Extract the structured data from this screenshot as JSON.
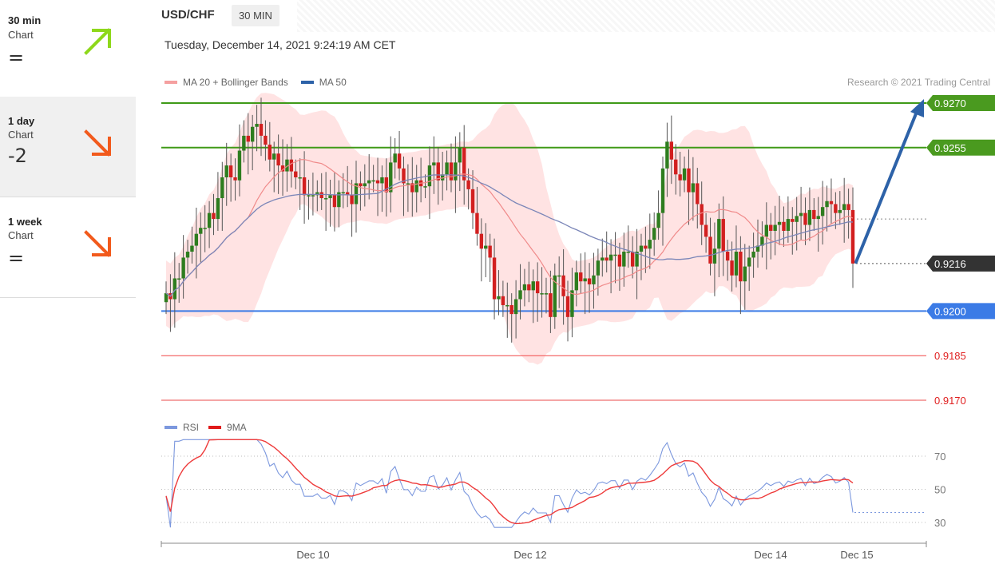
{
  "sidebar": {
    "items": [
      {
        "title": "30 min",
        "sub": "Chart",
        "score": "=",
        "trend": "up",
        "color": "#8ed81b"
      },
      {
        "title": "1 day",
        "sub": "Chart",
        "score": "-2",
        "trend": "down",
        "color": "#f25a1c"
      },
      {
        "title": "1 week",
        "sub": "Chart",
        "score": "=",
        "trend": "down",
        "color": "#f25a1c"
      }
    ]
  },
  "header": {
    "pair": "USD/CHF",
    "timeframe": "30 MIN",
    "datetime": "Tuesday, December 14, 2021 9:24:19 AM CET"
  },
  "legend": {
    "ma20": "MA 20 + Bollinger Bands",
    "ma50": "MA 50",
    "rsi": "RSI",
    "ma9": "9MA"
  },
  "credit": "Research © 2021 Trading Central",
  "colors": {
    "bull": "#2e7d1f",
    "bear": "#d21f1f",
    "resistance": "#3f9a17",
    "support": "#3b7be6",
    "target_arrow": "#2d62a8",
    "bollinger": "#ffe3e3",
    "ma20": "#f08a8a",
    "ma50": "#7b86b8",
    "rsi": "#7c98de",
    "ma9": "#ee3b3b"
  },
  "chart_data": {
    "type": "candlestick",
    "instrument": "USD/CHF",
    "interval": "30 MIN",
    "levels": [
      {
        "label": "0.9270",
        "value": 0.927,
        "kind": "resistance"
      },
      {
        "label": "0.9255",
        "value": 0.9255,
        "kind": "resistance"
      },
      {
        "label": "0.9216",
        "value": 0.9216,
        "kind": "last"
      },
      {
        "label": "0.9200",
        "value": 0.92,
        "kind": "support"
      },
      {
        "label": "0.9185",
        "value": 0.9185,
        "kind": "support2"
      },
      {
        "label": "0.9170",
        "value": 0.917,
        "kind": "support3"
      }
    ],
    "ylim": [
      0.9165,
      0.9288
    ],
    "x_ticks": [
      "Dec 10",
      "Dec 12",
      "Dec 14",
      "Dec 15"
    ],
    "candle_count": 160,
    "close_series": [
      0.9206,
      0.9204,
      0.9211,
      0.9211,
      0.9218,
      0.922,
      0.9222,
      0.9226,
      0.9228,
      0.9228,
      0.9233,
      0.9231,
      0.9238,
      0.9245,
      0.9249,
      0.9245,
      0.9244,
      0.9254,
      0.9259,
      0.9257,
      0.9262,
      0.9263,
      0.9259,
      0.9256,
      0.9251,
      0.9253,
      0.9249,
      0.9247,
      0.9251,
      0.9247,
      0.9245,
      0.9245,
      0.9239,
      0.9239,
      0.9239,
      0.924,
      0.9238,
      0.9238,
      0.9239,
      0.9235,
      0.924,
      0.924,
      0.9239,
      0.9236,
      0.9243,
      0.9242,
      0.9243,
      0.9244,
      0.9244,
      0.9243,
      0.9245,
      0.924,
      0.925,
      0.9253,
      0.9248,
      0.9243,
      0.9243,
      0.924,
      0.9244,
      0.9242,
      0.9242,
      0.9249,
      0.925,
      0.9244,
      0.9246,
      0.925,
      0.9244,
      0.925,
      0.9255,
      0.9244,
      0.9241,
      0.9233,
      0.9226,
      0.9221,
      0.9222,
      0.9218,
      0.9204,
      0.9205,
      0.9202,
      0.9202,
      0.9199,
      0.9204,
      0.9207,
      0.9209,
      0.9207,
      0.921,
      0.9206,
      0.9206,
      0.9206,
      0.9198,
      0.9212,
      0.9212,
      0.9205,
      0.9198,
      0.9207,
      0.9213,
      0.921,
      0.9211,
      0.9209,
      0.9212,
      0.9217,
      0.9218,
      0.9217,
      0.9219,
      0.9219,
      0.9215,
      0.922,
      0.922,
      0.9215,
      0.922,
      0.9222,
      0.9221,
      0.9224,
      0.9228,
      0.9233,
      0.9248,
      0.9257,
      0.9251,
      0.9246,
      0.9244,
      0.9248,
      0.924,
      0.9243,
      0.9236,
      0.9229,
      0.9225,
      0.9216,
      0.9221,
      0.9231,
      0.922,
      0.9217,
      0.9212,
      0.922,
      0.921,
      0.9215,
      0.9218,
      0.922,
      0.9222,
      0.9225,
      0.9229,
      0.9227,
      0.9229,
      0.923,
      0.9227,
      0.9231,
      0.923,
      0.9232,
      0.9233,
      0.9229,
      0.9234,
      0.9231,
      0.9232,
      0.9235,
      0.9237,
      0.9236,
      0.9233,
      0.9234,
      0.9236,
      0.9234,
      0.9216
    ],
    "rsi_panel": {
      "levels": [
        70,
        50,
        30
      ],
      "series": [
        {
          "name": "RSI",
          "last": 36
        },
        {
          "name": "9MA",
          "last": 53
        }
      ]
    }
  }
}
